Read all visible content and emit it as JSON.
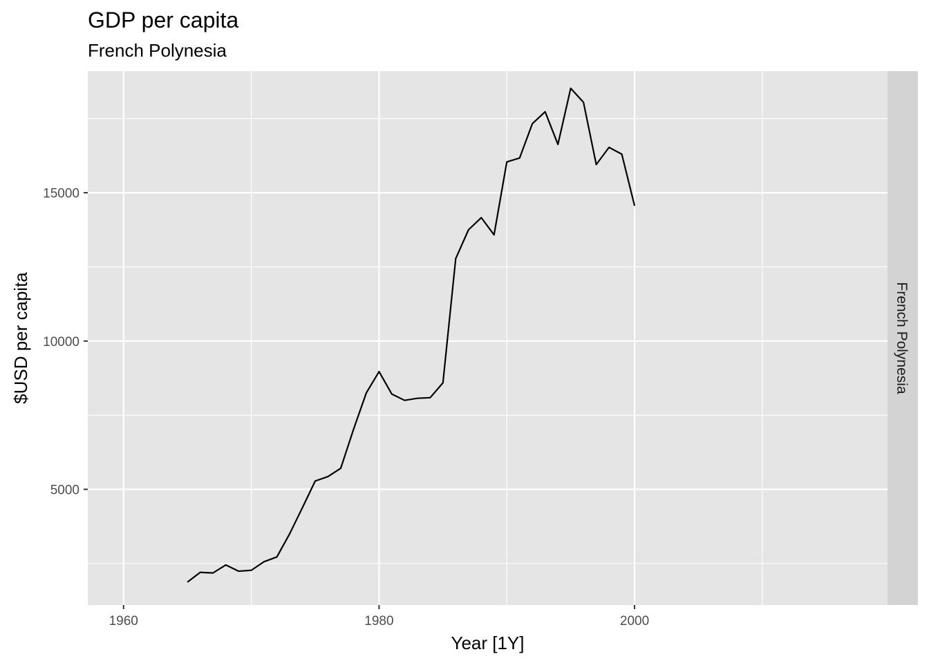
{
  "chart_data": {
    "type": "line",
    "title": "GDP per capita",
    "subtitle": "French Polynesia",
    "xlabel": "Year [1Y]",
    "ylabel": "$USD per capita",
    "facet_label": "French Polynesia",
    "xlim": [
      1957.2,
      2019.8
    ],
    "ylim": [
      1100,
      19100
    ],
    "x_ticks": [
      1960,
      1980,
      2000
    ],
    "x_tick_labels": [
      "1960",
      "1980",
      "2000"
    ],
    "x_minor_ticks": [
      1970,
      1990,
      2010
    ],
    "y_ticks": [
      5000,
      10000,
      15000
    ],
    "y_tick_labels": [
      "5000",
      "10000",
      "15000"
    ],
    "y_minor_ticks": [
      2500,
      7500,
      12500,
      17500
    ],
    "grid": true,
    "colors": {
      "panel_background": "#e5e5e5",
      "strip_background": "#d3d3d3",
      "grid": "#ffffff",
      "line": "#000000"
    },
    "x": [
      1965,
      1966,
      1967,
      1968,
      1969,
      1970,
      1971,
      1972,
      1973,
      1974,
      1975,
      1976,
      1977,
      1978,
      1979,
      1980,
      1981,
      1982,
      1983,
      1984,
      1985,
      1986,
      1987,
      1988,
      1989,
      1990,
      1991,
      1992,
      1993,
      1994,
      1995,
      1996,
      1997,
      1998,
      1999,
      2000
    ],
    "series": [
      {
        "values": [
          1870,
          2200,
          2180,
          2450,
          2240,
          2270,
          2560,
          2720,
          3500,
          4380,
          5280,
          5430,
          5710,
          7020,
          8250,
          8970,
          8210,
          8000,
          8070,
          8090,
          8590,
          12780,
          13750,
          14160,
          13580,
          16040,
          16170,
          17330,
          17730,
          16630,
          18520,
          18050,
          15950,
          16530,
          16300,
          14560
        ]
      }
    ]
  }
}
